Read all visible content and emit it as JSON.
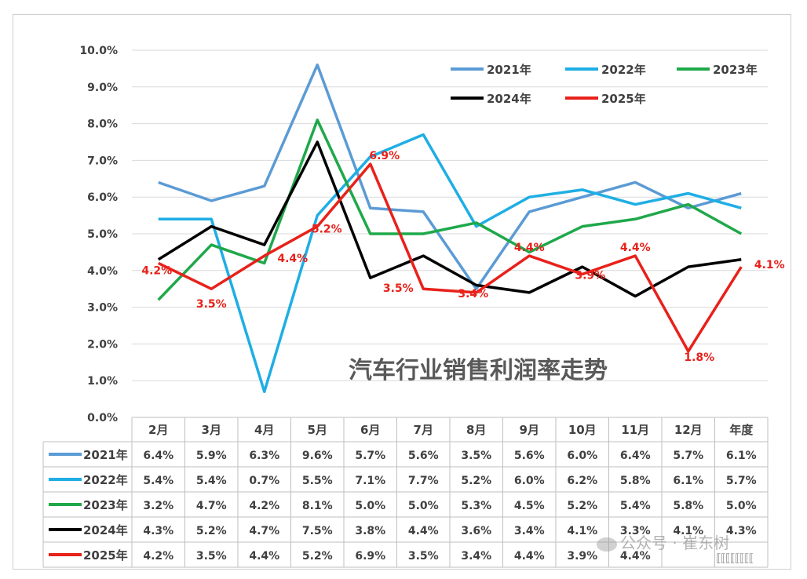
{
  "chart_data": {
    "type": "line",
    "title": "汽车行业销售利润率走势",
    "categories": [
      "2月",
      "3月",
      "4月",
      "5月",
      "6月",
      "7月",
      "8月",
      "9月",
      "10月",
      "11月",
      "12月",
      "年度"
    ],
    "y_ticks": [
      "0.0%",
      "1.0%",
      "2.0%",
      "3.0%",
      "4.0%",
      "5.0%",
      "6.0%",
      "7.0%",
      "8.0%",
      "9.0%",
      "10.0%"
    ],
    "ylim": [
      0,
      10
    ],
    "grid": true,
    "legend_position": "top-right",
    "series": [
      {
        "name": "2021年",
        "color": "#5b9bd5",
        "values": [
          6.4,
          5.9,
          6.3,
          9.6,
          5.7,
          5.6,
          3.5,
          5.6,
          6.0,
          6.4,
          5.7,
          6.1
        ],
        "table": [
          "6.4%",
          "5.9%",
          "6.3%",
          "9.6%",
          "5.7%",
          "5.6%",
          "3.5%",
          "5.6%",
          "6.0%",
          "6.4%",
          "5.7%",
          "6.1%"
        ]
      },
      {
        "name": "2022年",
        "color": "#1eaee4",
        "values": [
          5.4,
          5.4,
          0.7,
          5.5,
          7.1,
          7.7,
          5.2,
          6.0,
          6.2,
          5.8,
          6.1,
          5.7
        ],
        "table": [
          "5.4%",
          "5.4%",
          "0.7%",
          "5.5%",
          "7.1%",
          "7.7%",
          "5.2%",
          "6.0%",
          "6.2%",
          "5.8%",
          "6.1%",
          "5.7%"
        ]
      },
      {
        "name": "2023年",
        "color": "#1fa84a",
        "values": [
          3.2,
          4.7,
          4.2,
          8.1,
          5.0,
          5.0,
          5.3,
          4.5,
          5.2,
          5.4,
          5.8,
          5.0
        ],
        "table": [
          "3.2%",
          "4.7%",
          "4.2%",
          "8.1%",
          "5.0%",
          "5.0%",
          "5.3%",
          "4.5%",
          "5.2%",
          "5.4%",
          "5.8%",
          "5.0%"
        ]
      },
      {
        "name": "2024年",
        "color": "#000000",
        "values": [
          4.3,
          5.2,
          4.7,
          7.5,
          3.8,
          4.4,
          3.6,
          3.4,
          4.1,
          3.3,
          4.1,
          4.3
        ],
        "table": [
          "4.3%",
          "5.2%",
          "4.7%",
          "7.5%",
          "3.8%",
          "4.4%",
          "3.6%",
          "3.4%",
          "4.1%",
          "3.3%",
          "4.1%",
          "4.3%"
        ]
      },
      {
        "name": "2025年",
        "color": "#e8211a",
        "values": [
          4.2,
          3.5,
          4.4,
          5.2,
          6.9,
          3.5,
          3.4,
          4.4,
          3.9,
          4.4,
          1.8,
          4.1
        ],
        "table": [
          "4.2%",
          "3.5%",
          "4.4%",
          "5.2%",
          "6.9%",
          "3.5%",
          "3.4%",
          "4.4%",
          "3.9%",
          "4.4%",
          "",
          ""
        ],
        "point_labels": [
          "4.2%",
          "3.5%",
          "4.4%",
          "5.2%",
          "6.9%",
          "3.5%",
          "3.4%",
          "4.4%",
          "3.9%",
          "4.4%",
          "1.8%",
          "4.1%"
        ]
      }
    ]
  },
  "watermark": {
    "text": "公众号 · 崔东树"
  }
}
